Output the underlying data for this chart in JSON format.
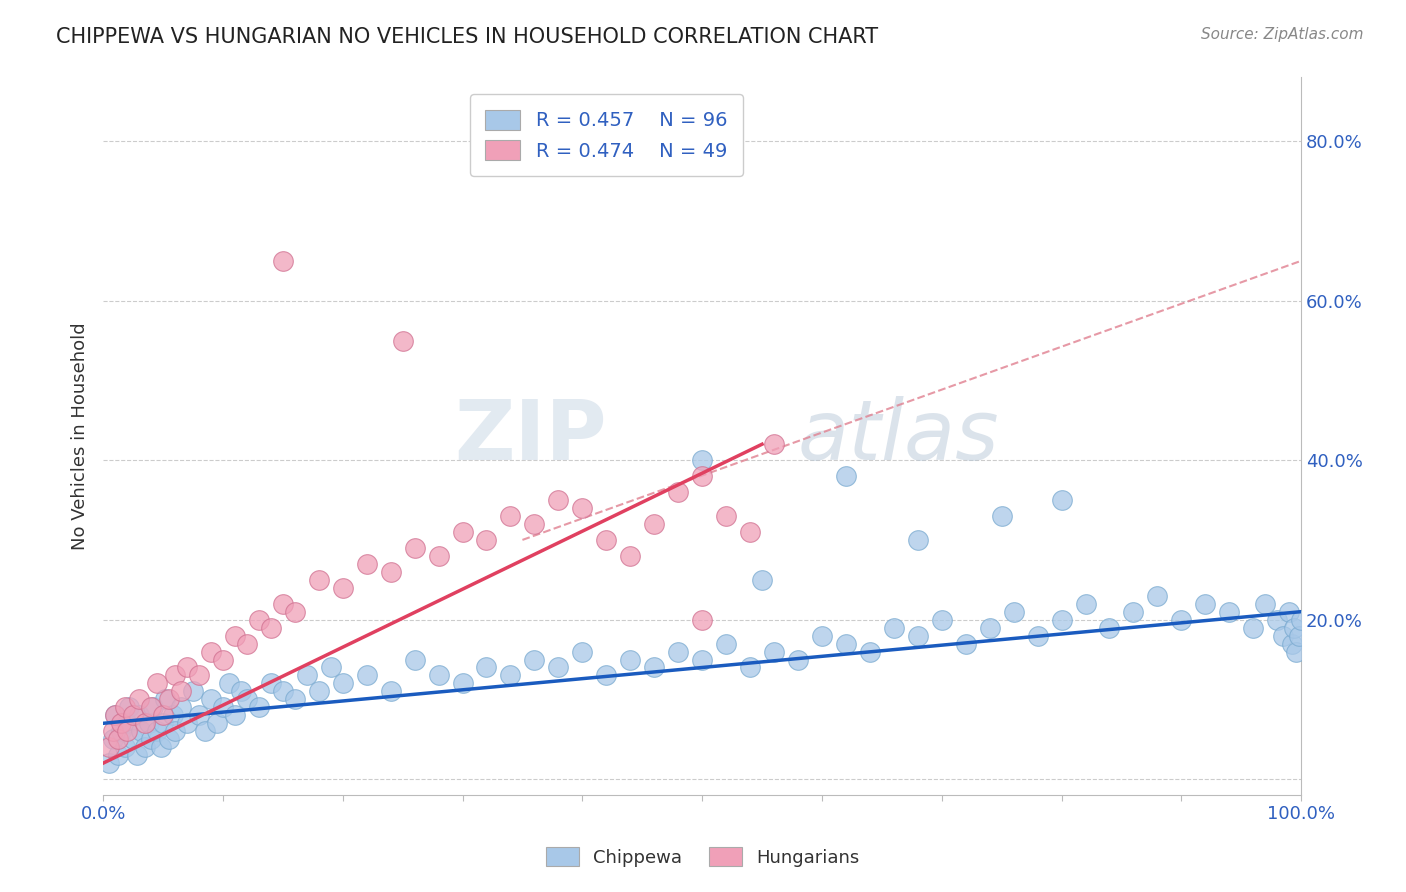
{
  "title": "CHIPPEWA VS HUNGARIAN NO VEHICLES IN HOUSEHOLD CORRELATION CHART",
  "source": "Source: ZipAtlas.com",
  "ylabel": "No Vehicles in Household",
  "yticks": [
    0.0,
    0.2,
    0.4,
    0.6,
    0.8
  ],
  "ytick_labels": [
    "",
    "20.0%",
    "40.0%",
    "60.0%",
    "80.0%"
  ],
  "xlim": [
    0.0,
    1.0
  ],
  "ylim": [
    -0.02,
    0.88
  ],
  "chippewa_color": "#a8c8e8",
  "hungarian_color": "#f0a0b8",
  "chippewa_line_color": "#1a5bbf",
  "hungarian_line_color": "#e04060",
  "dashed_line_color": "#e08090",
  "background_color": "#ffffff",
  "grid_color": "#cccccc",
  "legend_text_color": "#3060c0",
  "watermark_color": "#dde8f0",
  "chippewa_x": [
    0.005,
    0.008,
    0.01,
    0.012,
    0.015,
    0.018,
    0.02,
    0.022,
    0.025,
    0.028,
    0.03,
    0.032,
    0.035,
    0.038,
    0.04,
    0.042,
    0.045,
    0.048,
    0.05,
    0.052,
    0.055,
    0.058,
    0.06,
    0.065,
    0.07,
    0.075,
    0.08,
    0.085,
    0.09,
    0.095,
    0.1,
    0.105,
    0.11,
    0.115,
    0.12,
    0.13,
    0.14,
    0.15,
    0.16,
    0.17,
    0.18,
    0.19,
    0.2,
    0.22,
    0.24,
    0.26,
    0.28,
    0.3,
    0.32,
    0.34,
    0.36,
    0.38,
    0.4,
    0.42,
    0.44,
    0.46,
    0.48,
    0.5,
    0.52,
    0.54,
    0.56,
    0.58,
    0.6,
    0.62,
    0.64,
    0.66,
    0.68,
    0.7,
    0.72,
    0.74,
    0.76,
    0.78,
    0.8,
    0.82,
    0.84,
    0.86,
    0.88,
    0.9,
    0.92,
    0.94,
    0.96,
    0.97,
    0.98,
    0.985,
    0.99,
    0.992,
    0.994,
    0.996,
    0.998,
    1.0,
    0.5,
    0.55,
    0.62,
    0.68,
    0.75,
    0.8
  ],
  "chippewa_y": [
    0.02,
    0.05,
    0.08,
    0.03,
    0.06,
    0.04,
    0.07,
    0.09,
    0.05,
    0.03,
    0.08,
    0.06,
    0.04,
    0.07,
    0.05,
    0.09,
    0.06,
    0.04,
    0.07,
    0.1,
    0.05,
    0.08,
    0.06,
    0.09,
    0.07,
    0.11,
    0.08,
    0.06,
    0.1,
    0.07,
    0.09,
    0.12,
    0.08,
    0.11,
    0.1,
    0.09,
    0.12,
    0.11,
    0.1,
    0.13,
    0.11,
    0.14,
    0.12,
    0.13,
    0.11,
    0.15,
    0.13,
    0.12,
    0.14,
    0.13,
    0.15,
    0.14,
    0.16,
    0.13,
    0.15,
    0.14,
    0.16,
    0.15,
    0.17,
    0.14,
    0.16,
    0.15,
    0.18,
    0.17,
    0.16,
    0.19,
    0.18,
    0.2,
    0.17,
    0.19,
    0.21,
    0.18,
    0.2,
    0.22,
    0.19,
    0.21,
    0.23,
    0.2,
    0.22,
    0.21,
    0.19,
    0.22,
    0.2,
    0.18,
    0.21,
    0.17,
    0.19,
    0.16,
    0.18,
    0.2,
    0.4,
    0.25,
    0.38,
    0.3,
    0.33,
    0.35
  ],
  "hungarian_x": [
    0.005,
    0.008,
    0.01,
    0.012,
    0.015,
    0.018,
    0.02,
    0.025,
    0.03,
    0.035,
    0.04,
    0.045,
    0.05,
    0.055,
    0.06,
    0.065,
    0.07,
    0.08,
    0.09,
    0.1,
    0.11,
    0.12,
    0.13,
    0.14,
    0.15,
    0.16,
    0.18,
    0.2,
    0.22,
    0.24,
    0.26,
    0.28,
    0.3,
    0.32,
    0.34,
    0.36,
    0.38,
    0.4,
    0.42,
    0.44,
    0.46,
    0.48,
    0.5,
    0.52,
    0.54,
    0.56,
    0.15,
    0.25,
    0.5
  ],
  "hungarian_y": [
    0.04,
    0.06,
    0.08,
    0.05,
    0.07,
    0.09,
    0.06,
    0.08,
    0.1,
    0.07,
    0.09,
    0.12,
    0.08,
    0.1,
    0.13,
    0.11,
    0.14,
    0.13,
    0.16,
    0.15,
    0.18,
    0.17,
    0.2,
    0.19,
    0.22,
    0.21,
    0.25,
    0.24,
    0.27,
    0.26,
    0.29,
    0.28,
    0.31,
    0.3,
    0.33,
    0.32,
    0.35,
    0.34,
    0.3,
    0.28,
    0.32,
    0.36,
    0.38,
    0.33,
    0.31,
    0.42,
    0.65,
    0.55,
    0.2
  ],
  "chippewa_trend_x": [
    0.0,
    1.0
  ],
  "chippewa_trend_y": [
    0.07,
    0.21
  ],
  "hungarian_trend_x": [
    0.0,
    0.55
  ],
  "hungarian_trend_y": [
    0.02,
    0.42
  ],
  "dashed_trend_x": [
    0.35,
    1.0
  ],
  "dashed_trend_y": [
    0.3,
    0.65
  ]
}
